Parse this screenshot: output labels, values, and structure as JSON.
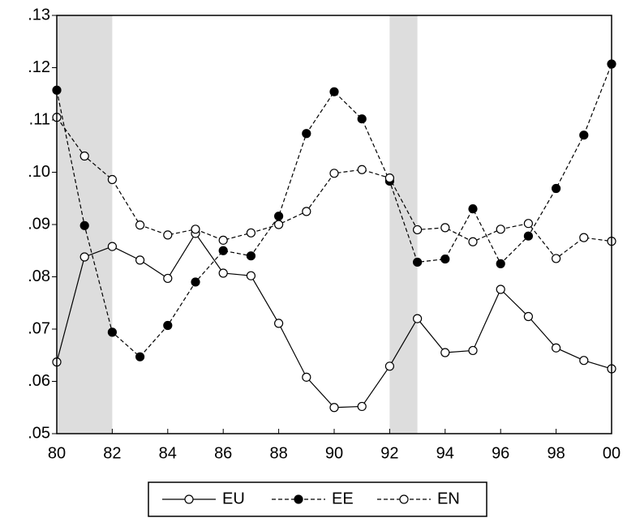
{
  "chart_data": {
    "type": "line",
    "x": [
      80,
      81,
      82,
      83,
      84,
      85,
      86,
      87,
      88,
      89,
      90,
      91,
      92,
      93,
      94,
      95,
      96,
      97,
      98,
      99,
      100
    ],
    "xlim": [
      80,
      100
    ],
    "xticks": [
      80,
      82,
      84,
      86,
      88,
      90,
      92,
      94,
      96,
      98,
      {
        "value": 100,
        "label": "00"
      }
    ],
    "ylim": [
      0.05,
      0.13
    ],
    "yticks": [
      {
        "value": 0.05,
        "label": ".05"
      },
      {
        "value": 0.06,
        "label": ".06"
      },
      {
        "value": 0.07,
        "label": ".07"
      },
      {
        "value": 0.08,
        "label": ".08"
      },
      {
        "value": 0.09,
        "label": ".09"
      },
      {
        "value": 0.1,
        "label": ".10"
      },
      {
        "value": 0.11,
        "label": ".11"
      },
      {
        "value": 0.12,
        "label": ".12"
      },
      {
        "value": 0.13,
        "label": ".13"
      }
    ],
    "shaded_ranges": [
      [
        80,
        82
      ],
      [
        92,
        93
      ]
    ],
    "shade_color": "#dddddd",
    "series": [
      {
        "name": "EU",
        "color": "#000000",
        "line_style": "solid",
        "marker_fill": "#ffffff",
        "values": [
          0.0637,
          0.0838,
          0.0858,
          0.0832,
          0.0797,
          0.0883,
          0.0807,
          0.0802,
          0.0711,
          0.0608,
          0.055,
          0.0552,
          0.0629,
          0.072,
          0.0655,
          0.0659,
          0.0776,
          0.0724,
          0.0664,
          0.064,
          0.0624
        ]
      },
      {
        "name": "EE",
        "color": "#000000",
        "line_style": "dashed",
        "marker_fill": "#000000",
        "values": [
          0.1157,
          0.0898,
          0.0694,
          0.0647,
          0.0707,
          0.079,
          0.085,
          0.084,
          0.0916,
          0.1074,
          0.1154,
          0.1102,
          0.0983,
          0.0828,
          0.0834,
          0.093,
          0.0825,
          0.0878,
          0.0969,
          0.1071,
          0.1207
        ]
      },
      {
        "name": "EN",
        "color": "#000000",
        "line_style": "dashed",
        "marker_fill": "#ffffff",
        "values": [
          0.1105,
          0.1031,
          0.0986,
          0.0899,
          0.088,
          0.0891,
          0.087,
          0.0884,
          0.09,
          0.0925,
          0.0998,
          0.1005,
          0.0989,
          0.089,
          0.0894,
          0.0867,
          0.0891,
          0.0902,
          0.0835,
          0.0875,
          0.0868
        ]
      }
    ]
  }
}
